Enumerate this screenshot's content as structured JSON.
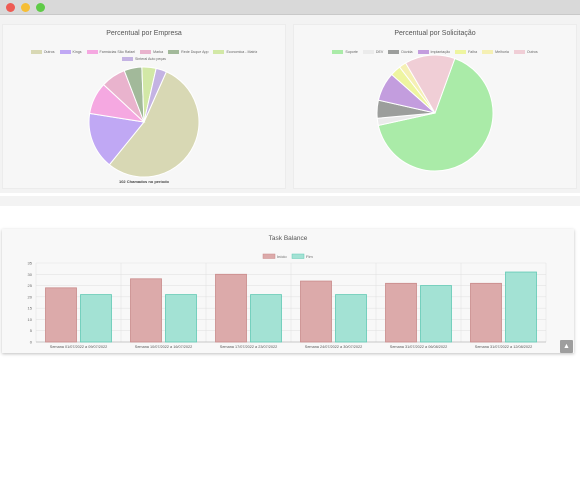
{
  "window": {
    "buttons": [
      "close",
      "minimize",
      "maximize"
    ]
  },
  "chart_data": [
    {
      "type": "pie",
      "title": "Percentual por Empresa",
      "labels": [
        "Outros",
        "Kings",
        "Farmácias São Rafael",
        "Marka",
        "Rede Duque App",
        "Economica - Matriz",
        "Sinteral Auto peças"
      ],
      "values": [
        52,
        16,
        9,
        7,
        5,
        4,
        3
      ],
      "colors": [
        "#d8d8b4",
        "#c0a8f4",
        "#f5a8e1",
        "#e9b3cd",
        "#a2b99a",
        "#d2e8a6",
        "#c4b3e3"
      ],
      "footnote": "102 Chamados no período"
    },
    {
      "type": "pie",
      "title": "Percentual por Solicitação",
      "labels": [
        "Suporte",
        "DEV",
        "Dúvida",
        "Implantação",
        "Falha",
        "Melhoria",
        "Outros"
      ],
      "values": [
        66,
        2,
        5,
        8,
        3,
        2,
        14
      ],
      "colors": [
        "#aaeba8",
        "#ebebeb",
        "#9c9e9c",
        "#c39dde",
        "#eef5a0",
        "#f5f0b4",
        "#f0ced6"
      ]
    },
    {
      "type": "bar",
      "title": "Task Balance",
      "categories": [
        "Semana 01/07/2022 a 09/07/2022",
        "Semana 10/07/2022 a 16/07/2022",
        "Semana 17/07/2022 a 23/07/2022",
        "Semana 24/07/2022 a 30/07/2022",
        "Semana 31/07/2022 a 06/08/2022",
        "Semana 31/07/2022 a 12/08/2022"
      ],
      "series": [
        {
          "name": "Início",
          "values": [
            24,
            28,
            30,
            27,
            26,
            26
          ],
          "fill": "#dcaaaa",
          "stroke": "#c98a8a"
        },
        {
          "name": "Fim",
          "values": [
            21,
            21,
            21,
            21,
            25,
            31
          ],
          "fill": "#a3e2d4",
          "stroke": "#5fc9b3"
        }
      ],
      "ylim": [
        0,
        35
      ],
      "yticks": [
        0,
        5,
        10,
        15,
        20,
        25,
        30,
        35
      ],
      "grid": true,
      "legend": "top"
    }
  ],
  "scroll_top_glyph": "▲"
}
